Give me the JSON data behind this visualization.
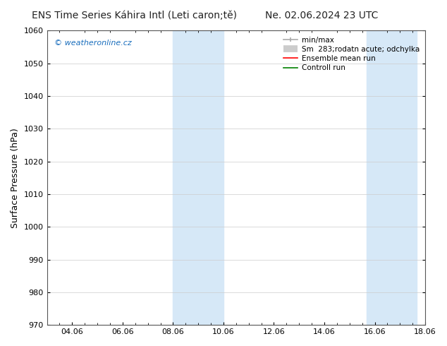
{
  "title_left": "ENS Time Series Káhira Intl (Leti caron;tě)",
  "title_right": "Ne. 02.06.2024 23 UTC",
  "ylabel": "Surface Pressure (hPa)",
  "ylim": [
    970,
    1060
  ],
  "yticks": [
    970,
    980,
    990,
    1000,
    1010,
    1020,
    1030,
    1040,
    1050,
    1060
  ],
  "xtick_labels": [
    "04.06",
    "06.06",
    "08.06",
    "10.06",
    "12.06",
    "14.06",
    "16.06",
    "18.06"
  ],
  "xtick_pos": [
    1,
    3,
    5,
    7,
    9,
    11,
    13,
    15
  ],
  "x_min": 0,
  "x_max": 15,
  "shaded_regions": [
    {
      "x_start": 5.0,
      "x_end": 7.0
    },
    {
      "x_start": 12.67,
      "x_end": 14.67
    }
  ],
  "shaded_color": "#d6e8f7",
  "watermark_text": "© weatheronline.cz",
  "watermark_color": "#1a6ebd",
  "legend_labels": [
    "min/max",
    "Sm  283;rodatn acute; odchylka",
    "Ensemble mean run",
    "Controll run"
  ],
  "legend_colors_line": [
    "#aaaaaa",
    "#cccccc",
    "red",
    "green"
  ],
  "bg_color": "#ffffff",
  "grid_color": "#cccccc",
  "font_size_title": 10,
  "font_size_axis": 9,
  "font_size_ticks": 8,
  "font_size_legend": 7.5,
  "font_size_watermark": 8
}
